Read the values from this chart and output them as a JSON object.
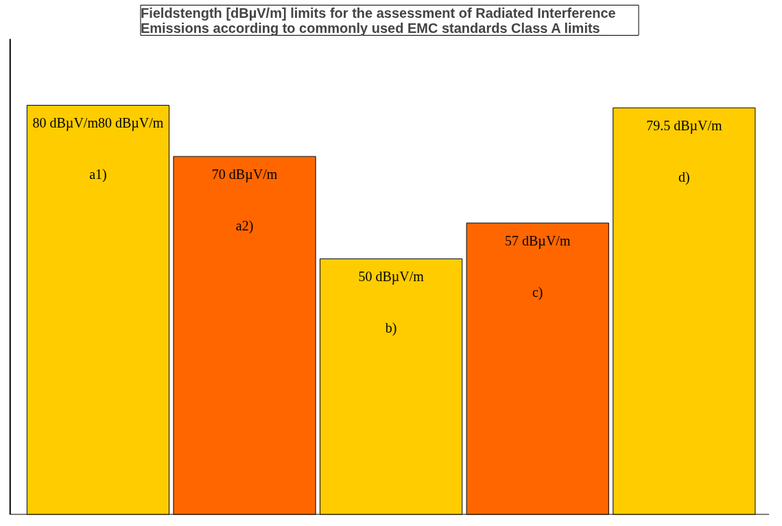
{
  "chart_data": {
    "type": "bar",
    "title": "Fieldstength    [dBµV/m]    limits for the assessment of Radiated Interference\nEmissions according to commonly used EMC standards Class A limits",
    "categories": [
      "a1)",
      "a2)",
      "b)",
      "c)",
      "d)"
    ],
    "values": [
      80,
      70,
      50,
      57,
      79.5
    ],
    "colors": [
      "#ffcc00",
      "#ff6600",
      "#ffcc00",
      "#ff6600",
      "#ffcc00"
    ],
    "value_labels": [
      "80 dBµV/m80 dBµV/m",
      "70 dBµV/m",
      "50 dBµV/m",
      "57 dBµV/m",
      "79.5 dBµV/m"
    ],
    "ylim": [
      0,
      93
    ],
    "tick_labels": false,
    "grid": false
  }
}
